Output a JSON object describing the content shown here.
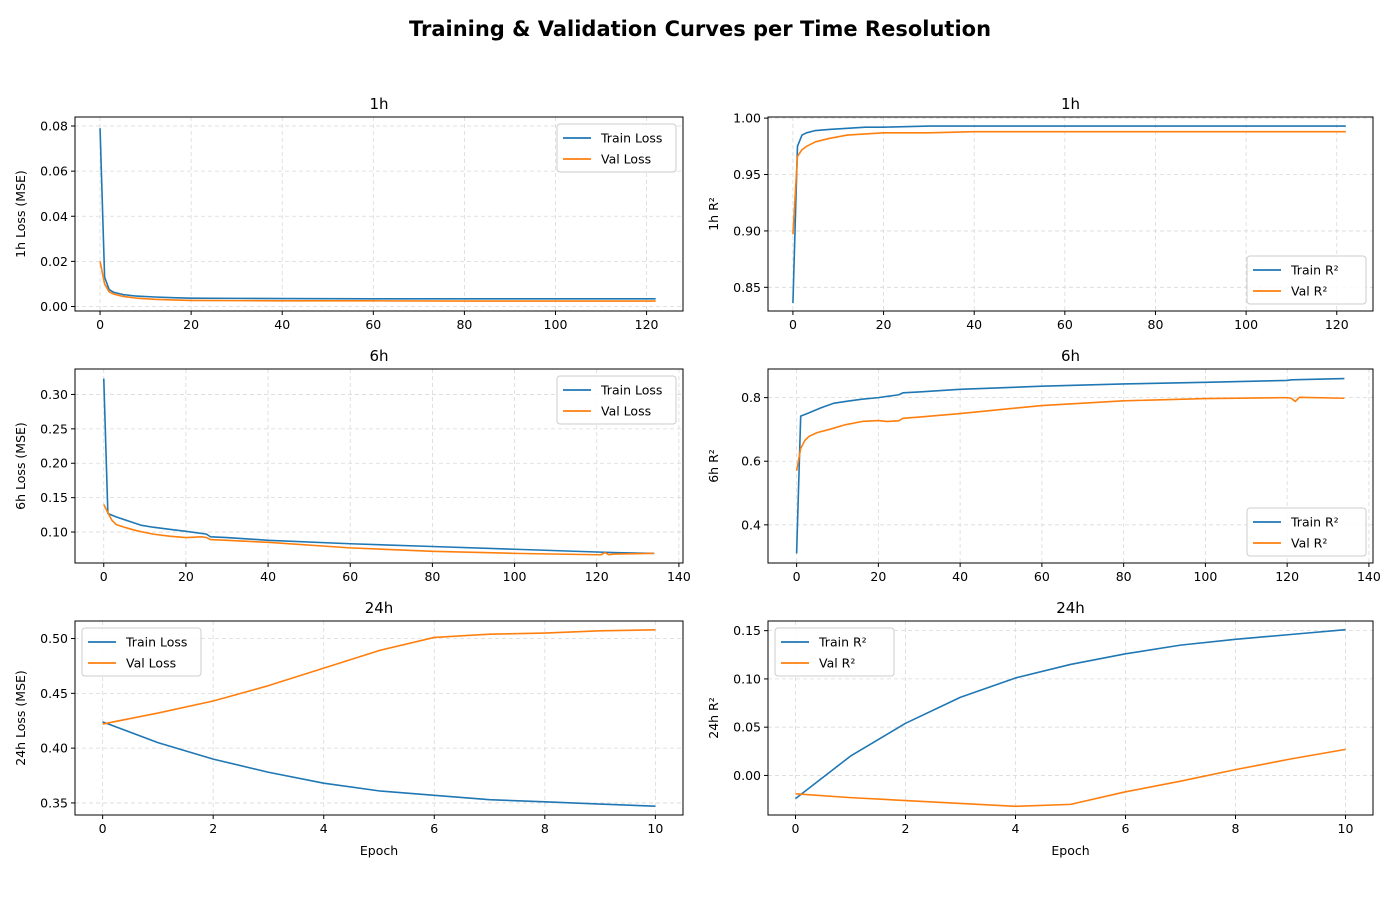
{
  "figure": {
    "title": "Training & Validation Curves per Time Resolution",
    "colors": {
      "train": "#1f77b4",
      "val": "#ff7f0e"
    }
  },
  "chart_data": [
    {
      "type": "line",
      "title": "1h",
      "xlabel": "",
      "ylabel": "1h Loss (MSE)",
      "xlim": [
        -5.5,
        128
      ],
      "ylim": [
        -0.002,
        0.084
      ],
      "xticks": [
        0,
        20,
        40,
        60,
        80,
        100,
        120
      ],
      "yticks": [
        0.0,
        0.02,
        0.04,
        0.06,
        0.08
      ],
      "ytick_decimals": 2,
      "grid": true,
      "legend": "upper right",
      "series": [
        {
          "name": "Train Loss",
          "color": "#1f77b4",
          "x": [
            0,
            1,
            2,
            3,
            5,
            8,
            12,
            16,
            20,
            30,
            40,
            60,
            80,
            100,
            122
          ],
          "y": [
            0.079,
            0.013,
            0.0075,
            0.0063,
            0.0053,
            0.0046,
            0.0042,
            0.0039,
            0.0037,
            0.0036,
            0.0035,
            0.0034,
            0.0034,
            0.0034,
            0.0034
          ]
        },
        {
          "name": "Val Loss",
          "color": "#ff7f0e",
          "x": [
            0,
            1,
            2,
            3,
            5,
            8,
            12,
            16,
            20,
            30,
            40,
            60,
            80,
            100,
            122
          ],
          "y": [
            0.02,
            0.01,
            0.0065,
            0.0055,
            0.0045,
            0.0037,
            0.0032,
            0.0029,
            0.0027,
            0.0026,
            0.0025,
            0.0025,
            0.0024,
            0.0024,
            0.0024
          ]
        }
      ]
    },
    {
      "type": "line",
      "title": "1h",
      "xlabel": "",
      "ylabel": "1h R²",
      "xlim": [
        -5.5,
        128
      ],
      "ylim": [
        0.829,
        1.001
      ],
      "xticks": [
        0,
        20,
        40,
        60,
        80,
        100,
        120
      ],
      "yticks": [
        0.85,
        0.9,
        0.95,
        1.0
      ],
      "ytick_decimals": 2,
      "grid": true,
      "legend": "lower right",
      "series": [
        {
          "name": "Train R²",
          "color": "#1f77b4",
          "x": [
            0,
            1,
            2,
            3,
            5,
            8,
            12,
            16,
            20,
            30,
            40,
            60,
            80,
            100,
            122
          ],
          "y": [
            0.836,
            0.975,
            0.985,
            0.987,
            0.989,
            0.99,
            0.991,
            0.992,
            0.992,
            0.993,
            0.993,
            0.993,
            0.993,
            0.993,
            0.993
          ]
        },
        {
          "name": "Val R²",
          "color": "#ff7f0e",
          "x": [
            0,
            1,
            2,
            3,
            5,
            8,
            12,
            16,
            20,
            30,
            40,
            60,
            80,
            100,
            122
          ],
          "y": [
            0.897,
            0.966,
            0.972,
            0.975,
            0.979,
            0.982,
            0.985,
            0.986,
            0.987,
            0.987,
            0.988,
            0.988,
            0.988,
            0.988,
            0.988
          ]
        }
      ]
    },
    {
      "type": "line",
      "title": "6h",
      "xlabel": "",
      "ylabel": "6h Loss (MSE)",
      "xlim": [
        -7,
        141
      ],
      "ylim": [
        0.055,
        0.337
      ],
      "xticks": [
        0,
        20,
        40,
        60,
        80,
        100,
        120,
        140
      ],
      "yticks": [
        0.1,
        0.15,
        0.2,
        0.25,
        0.3
      ],
      "ytick_decimals": 2,
      "grid": true,
      "legend": "upper right",
      "series": [
        {
          "name": "Train Loss",
          "color": "#1f77b4",
          "x": [
            0,
            1,
            3,
            6,
            9,
            12,
            16,
            20,
            25,
            26,
            30,
            40,
            60,
            80,
            100,
            120,
            125,
            134
          ],
          "y": [
            0.323,
            0.127,
            0.122,
            0.116,
            0.11,
            0.107,
            0.104,
            0.101,
            0.097,
            0.093,
            0.092,
            0.088,
            0.083,
            0.079,
            0.075,
            0.071,
            0.07,
            0.069
          ]
        },
        {
          "name": "Val Loss",
          "color": "#ff7f0e",
          "x": [
            0,
            1,
            2,
            3,
            5,
            8,
            12,
            16,
            20,
            24,
            25,
            26,
            30,
            40,
            60,
            80,
            100,
            120,
            121,
            122,
            123,
            124,
            134
          ],
          "y": [
            0.14,
            0.128,
            0.117,
            0.111,
            0.107,
            0.102,
            0.097,
            0.094,
            0.092,
            0.093,
            0.092,
            0.089,
            0.088,
            0.085,
            0.077,
            0.072,
            0.069,
            0.067,
            0.067,
            0.07,
            0.067,
            0.068,
            0.069
          ]
        }
      ]
    },
    {
      "type": "line",
      "title": "6h",
      "xlabel": "",
      "ylabel": "6h R²",
      "xlim": [
        -7,
        141
      ],
      "ylim": [
        0.28,
        0.89
      ],
      "xticks": [
        0,
        20,
        40,
        60,
        80,
        100,
        120,
        140
      ],
      "yticks": [
        0.4,
        0.6,
        0.8
      ],
      "ytick_decimals": 1,
      "grid": true,
      "legend": "lower right",
      "series": [
        {
          "name": "Train R²",
          "color": "#1f77b4",
          "x": [
            0,
            1,
            3,
            6,
            9,
            12,
            16,
            20,
            25,
            26,
            30,
            40,
            60,
            80,
            100,
            120,
            121,
            134
          ],
          "y": [
            0.31,
            0.742,
            0.752,
            0.768,
            0.782,
            0.788,
            0.795,
            0.8,
            0.809,
            0.815,
            0.818,
            0.826,
            0.836,
            0.843,
            0.848,
            0.854,
            0.856,
            0.86
          ]
        },
        {
          "name": "Val R²",
          "color": "#ff7f0e",
          "x": [
            0,
            1,
            2,
            3,
            5,
            8,
            12,
            16,
            20,
            22,
            25,
            26,
            30,
            40,
            60,
            80,
            100,
            120,
            121,
            122,
            123,
            134
          ],
          "y": [
            0.57,
            0.64,
            0.665,
            0.678,
            0.69,
            0.7,
            0.715,
            0.725,
            0.728,
            0.725,
            0.727,
            0.735,
            0.739,
            0.75,
            0.775,
            0.79,
            0.797,
            0.8,
            0.798,
            0.788,
            0.801,
            0.798
          ]
        }
      ]
    },
    {
      "type": "line",
      "title": "24h",
      "xlabel": "Epoch",
      "ylabel": "24h Loss (MSE)",
      "xlim": [
        -0.5,
        10.5
      ],
      "ylim": [
        0.339,
        0.516
      ],
      "xticks": [
        0,
        2,
        4,
        6,
        8,
        10
      ],
      "yticks": [
        0.35,
        0.4,
        0.45,
        0.5
      ],
      "ytick_decimals": 2,
      "grid": true,
      "legend": "upper left",
      "series": [
        {
          "name": "Train Loss",
          "color": "#1f77b4",
          "x": [
            0,
            1,
            2,
            3,
            4,
            5,
            6,
            7,
            8,
            9,
            10
          ],
          "y": [
            0.424,
            0.405,
            0.39,
            0.378,
            0.368,
            0.361,
            0.357,
            0.353,
            0.351,
            0.349,
            0.347
          ]
        },
        {
          "name": "Val Loss",
          "color": "#ff7f0e",
          "x": [
            0,
            1,
            2,
            3,
            4,
            5,
            6,
            7,
            8,
            9,
            10
          ],
          "y": [
            0.422,
            0.432,
            0.443,
            0.457,
            0.473,
            0.489,
            0.501,
            0.504,
            0.505,
            0.507,
            0.508
          ]
        }
      ]
    },
    {
      "type": "line",
      "title": "24h",
      "xlabel": "Epoch",
      "ylabel": "24h R²",
      "xlim": [
        -0.5,
        10.5
      ],
      "ylim": [
        -0.041,
        0.16
      ],
      "xticks": [
        0,
        2,
        4,
        6,
        8,
        10
      ],
      "yticks": [
        0.0,
        0.05,
        0.1,
        0.15
      ],
      "ytick_decimals": 2,
      "grid": true,
      "legend": "upper left",
      "series": [
        {
          "name": "Train R²",
          "color": "#1f77b4",
          "x": [
            0,
            1,
            2,
            3,
            4,
            5,
            6,
            7,
            8,
            9,
            10
          ],
          "y": [
            -0.024,
            0.02,
            0.054,
            0.081,
            0.101,
            0.115,
            0.126,
            0.135,
            0.141,
            0.146,
            0.151
          ]
        },
        {
          "name": "Val R²",
          "color": "#ff7f0e",
          "x": [
            0,
            1,
            2,
            3,
            4,
            5,
            6,
            7,
            8,
            9,
            10
          ],
          "y": [
            -0.019,
            -0.023,
            -0.026,
            -0.029,
            -0.032,
            -0.03,
            -0.017,
            -0.006,
            0.006,
            0.017,
            0.027
          ]
        }
      ]
    }
  ]
}
